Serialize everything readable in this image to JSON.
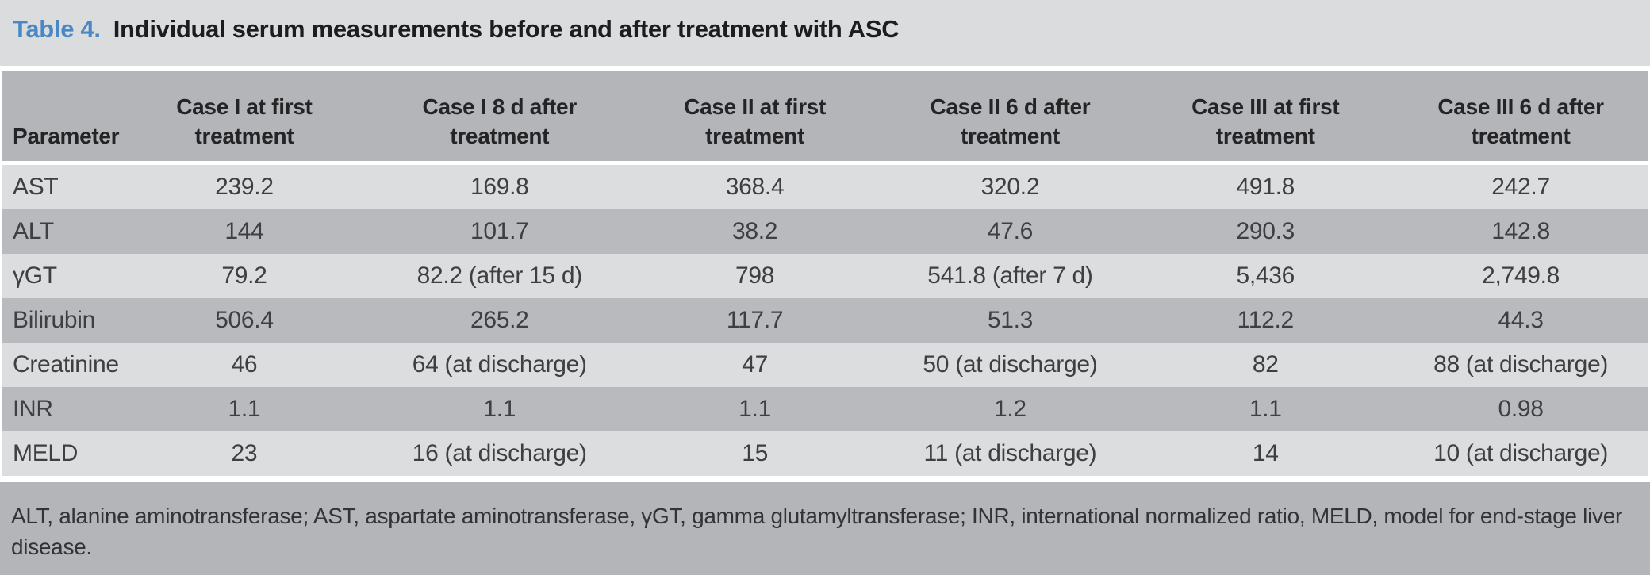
{
  "colors": {
    "accent_blue": "#4a87c5",
    "title_bg": "#dbdcde",
    "header_bg": "#b4b5b8",
    "row_light_bg": "#dcdddf",
    "row_dark_bg": "#b9babd",
    "footer_bg": "#b4b5b8"
  },
  "title": {
    "label": "Table 4.",
    "text": "Individual serum measurements before and after treatment with ASC"
  },
  "table": {
    "headers": [
      {
        "line1": "Parameter",
        "line2": ""
      },
      {
        "line1": "Case I at first",
        "line2": "treatment"
      },
      {
        "line1": "Case I 8 d after",
        "line2": "treatment"
      },
      {
        "line1": "Case II at first",
        "line2": "treatment"
      },
      {
        "line1": "Case II 6 d after",
        "line2": "treatment"
      },
      {
        "line1": "Case III at first",
        "line2": "treatment"
      },
      {
        "line1": "Case III 6 d after",
        "line2": "treatment"
      }
    ],
    "rows": [
      {
        "parameter": "AST",
        "values": [
          "239.2",
          "169.8",
          "368.4",
          "320.2",
          "491.8",
          "242.7"
        ]
      },
      {
        "parameter": "ALT",
        "values": [
          "144",
          "101.7",
          "38.2",
          "47.6",
          "290.3",
          "142.8"
        ]
      },
      {
        "parameter": "γGT",
        "values": [
          "79.2",
          "82.2 (after 15 d)",
          "798",
          "541.8 (after 7 d)",
          "5,436",
          "2,749.8"
        ]
      },
      {
        "parameter": "Bilirubin",
        "values": [
          "506.4",
          "265.2",
          "117.7",
          "51.3",
          "112.2",
          "44.3"
        ]
      },
      {
        "parameter": "Creatinine",
        "values": [
          "46",
          "64 (at discharge)",
          "47",
          "50 (at discharge)",
          "82",
          "88 (at discharge)"
        ]
      },
      {
        "parameter": "INR",
        "values": [
          "1.1",
          "1.1",
          "1.1",
          "1.2",
          "1.1",
          "0.98"
        ]
      },
      {
        "parameter": "MELD",
        "values": [
          "23",
          "16 (at discharge)",
          "15",
          "11 (at discharge)",
          "14",
          "10 (at discharge)"
        ]
      }
    ]
  },
  "footnote": "ALT, alanine aminotransferase; AST, aspartate aminotransferase, γGT, gamma glutamyltransferase; INR, international normalized ratio, MELD, model for end-stage liver disease."
}
